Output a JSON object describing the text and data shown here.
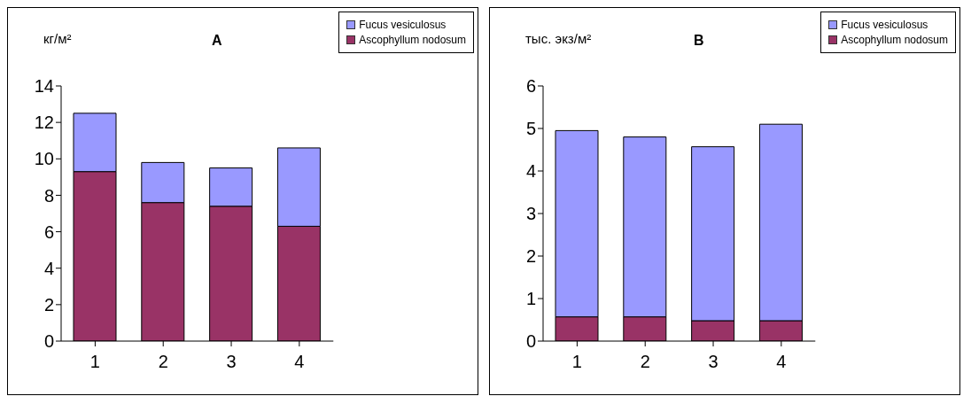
{
  "chart_data": [
    {
      "type": "bar",
      "title": "A",
      "ylabel": "кг/м²",
      "stacked": true,
      "categories": [
        "1",
        "2",
        "3",
        "4"
      ],
      "series": [
        {
          "name": "Ascophyllum nodosum",
          "color": "#993366",
          "values": [
            9.3,
            7.6,
            7.4,
            6.3
          ]
        },
        {
          "name": "Fucus vesiculosus",
          "color": "#9999ff",
          "values": [
            3.2,
            2.2,
            2.1,
            4.3
          ]
        }
      ],
      "ylim": [
        0,
        14
      ],
      "yticks": [
        0,
        2,
        4,
        6,
        8,
        10,
        12,
        14
      ],
      "grid": false,
      "legend": "top right"
    },
    {
      "type": "bar",
      "title": "B",
      "ylabel": "тыс. экз/м²",
      "stacked": true,
      "categories": [
        "1",
        "2",
        "3",
        "4"
      ],
      "series": [
        {
          "name": "Ascophyllum nodosum",
          "color": "#993366",
          "values": [
            0.57,
            0.57,
            0.48,
            0.48
          ]
        },
        {
          "name": "Fucus vesiculosus",
          "color": "#9999ff",
          "values": [
            4.38,
            4.23,
            4.09,
            4.62
          ]
        }
      ],
      "ylim": [
        0,
        6
      ],
      "yticks": [
        0,
        1,
        2,
        3,
        4,
        5,
        6
      ],
      "grid": false,
      "legend": "top right"
    }
  ]
}
